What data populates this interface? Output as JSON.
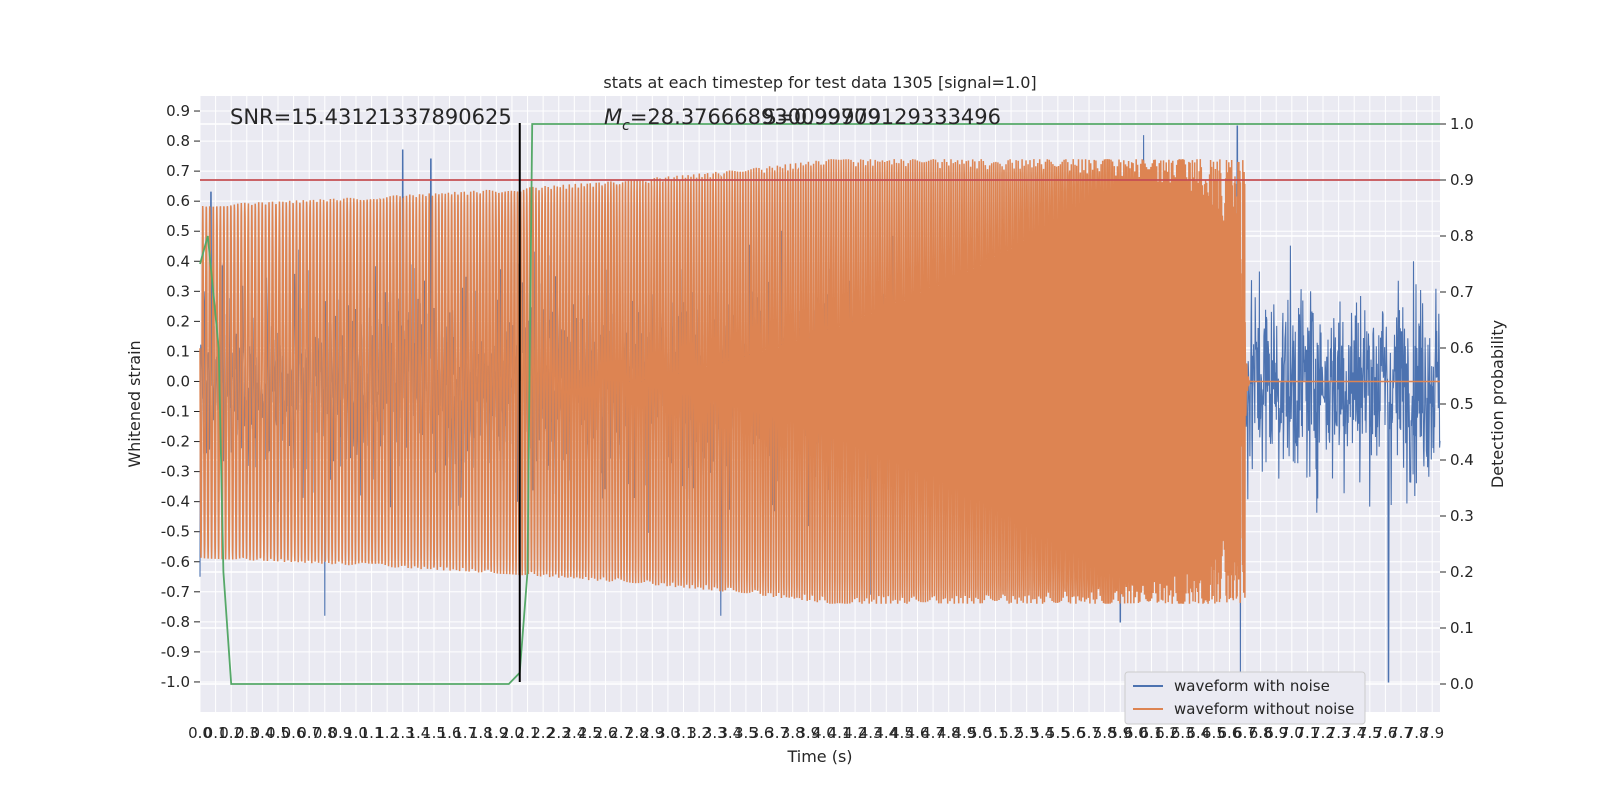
{
  "chart_data": {
    "type": "line",
    "title": "stats at each timestep for test data 1305 [signal=1.0]",
    "xlabel": "Time (s)",
    "ylabel": "Whitened strain",
    "ylabel_right": "Detection probability",
    "xlim": [
      0.0,
      7.95
    ],
    "ylim": [
      -1.1,
      0.95
    ],
    "ylim_right": [
      -0.05,
      1.05
    ],
    "x_ticks": [
      0.0,
      0.1,
      0.2,
      0.3,
      0.4,
      0.5,
      0.6,
      0.7,
      0.8,
      0.9,
      1.0,
      1.1,
      1.2,
      1.3,
      1.4,
      1.5,
      1.6,
      1.7,
      1.8,
      1.9,
      2.0,
      2.1,
      2.2,
      2.3,
      2.4,
      2.5,
      2.6,
      2.7,
      2.8,
      2.9,
      3.0,
      3.1,
      3.2,
      3.3,
      3.4,
      3.5,
      3.6,
      3.7,
      3.8,
      3.9,
      4.0,
      4.1,
      4.2,
      4.3,
      4.4,
      4.5,
      4.6,
      4.7,
      4.8,
      4.9,
      5.0,
      5.1,
      5.2,
      5.3,
      5.4,
      5.5,
      5.6,
      5.7,
      5.8,
      5.9,
      6.0,
      6.1,
      6.2,
      6.3,
      6.4,
      6.5,
      6.6,
      6.7,
      6.8,
      6.9,
      7.0,
      7.1,
      7.2,
      7.3,
      7.4,
      7.5,
      7.6,
      7.7,
      7.8,
      7.9
    ],
    "y_ticks": [
      0.9,
      0.8,
      0.7,
      0.6,
      0.5,
      0.4,
      0.3,
      0.2,
      0.1,
      0.0,
      -0.1,
      -0.2,
      -0.3,
      -0.4,
      -0.5,
      -0.6,
      -0.7,
      -0.8,
      -0.9,
      -1.0
    ],
    "y_ticks_right": [
      1.0,
      0.9,
      0.8,
      0.7,
      0.6,
      0.5,
      0.4,
      0.3,
      0.2,
      0.1,
      0.0
    ],
    "grid": true,
    "legend_position": "lower-right",
    "annotations": {
      "snr": "SNR=15.43121337890625",
      "mc_prefix": "M",
      "mc_sub": "c",
      "mc_value": "=28.376668930099979",
      "overlap_text": "S=0.99709129333496"
    },
    "series": [
      {
        "name": "waveform with noise",
        "color": "#4c72b0",
        "axis": "left",
        "kind": "noise",
        "amplitude_envelope": 0.5,
        "peaks": [
          {
            "x": 0.0,
            "y": -0.65
          },
          {
            "x": 0.07,
            "y": 0.63
          },
          {
            "x": 0.8,
            "y": -0.78
          },
          {
            "x": 1.3,
            "y": 0.77
          },
          {
            "x": 1.48,
            "y": 0.74
          },
          {
            "x": 3.34,
            "y": -0.78
          },
          {
            "x": 4.3,
            "y": -0.71
          },
          {
            "x": 5.9,
            "y": -0.8
          },
          {
            "x": 6.05,
            "y": 0.82
          },
          {
            "x": 6.65,
            "y": 0.85
          },
          {
            "x": 6.67,
            "y": -0.98
          },
          {
            "x": 7.62,
            "y": -1.0
          }
        ]
      },
      {
        "name": "waveform without noise",
        "color": "#dd8452",
        "axis": "left",
        "kind": "chirp",
        "x_start": 0.0,
        "merger_time": 6.7,
        "peak_amplitude": 0.74,
        "min_trough": -0.72
      },
      {
        "name": "Detection probability",
        "color": "#55a868",
        "axis": "right",
        "legend": false,
        "x": [
          0.0,
          0.05,
          0.12,
          0.15,
          0.2,
          0.25,
          1.98,
          2.05,
          2.1,
          2.13,
          2.2,
          7.95
        ],
        "values": [
          0.75,
          0.8,
          0.6,
          0.2,
          0.0,
          0.0,
          0.0,
          0.02,
          0.2,
          1.0,
          1.0,
          1.0
        ]
      }
    ],
    "threshold_line": {
      "axis": "right",
      "value": 0.9,
      "color": "#c44e52"
    },
    "vertical_line": {
      "x": 2.05,
      "color": "#000000"
    }
  }
}
